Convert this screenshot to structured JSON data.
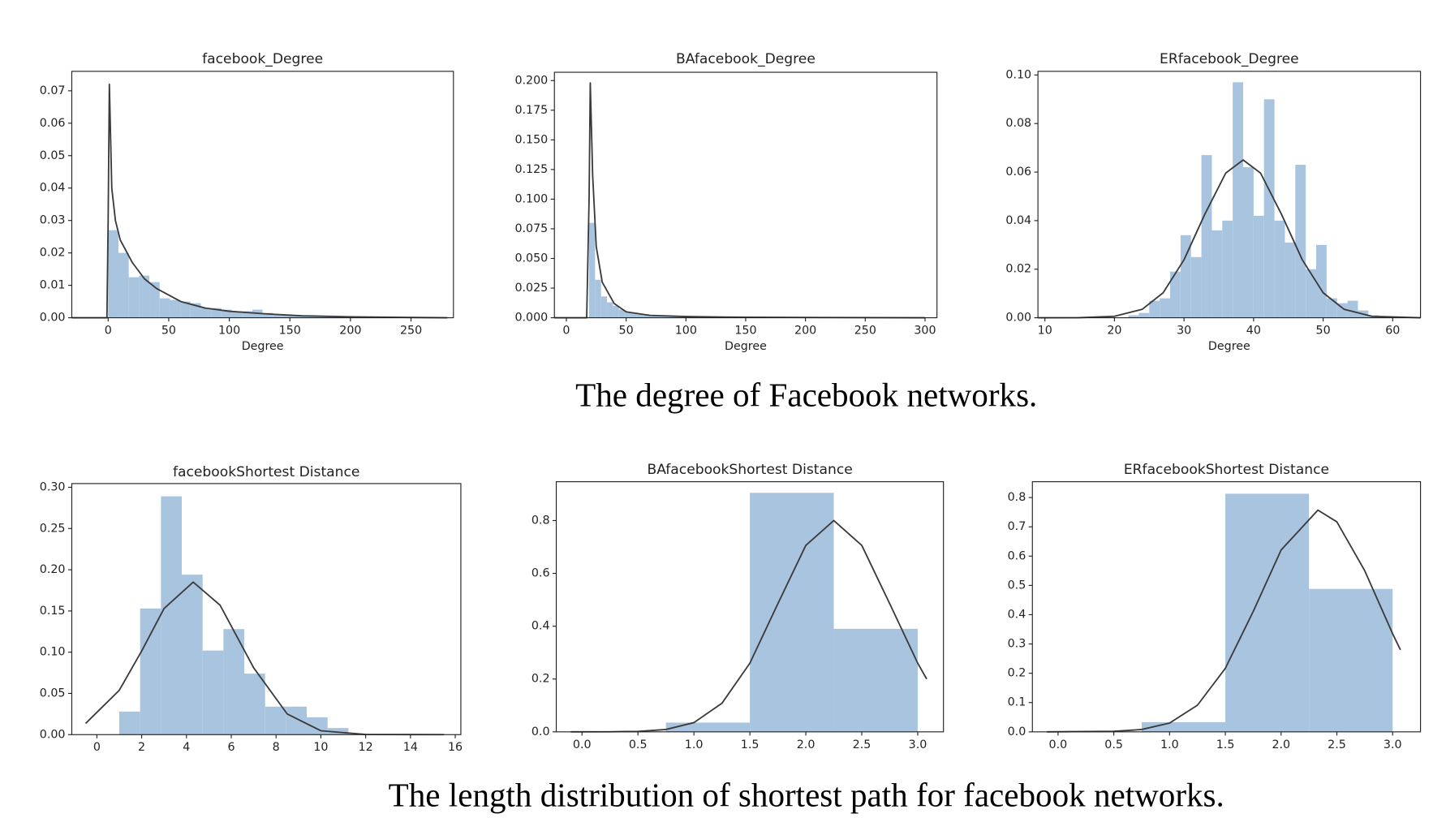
{
  "captions": [
    "The degree of Facebook networks.",
    "The length distribution of shortest path for facebook networks."
  ],
  "chart_data": [
    {
      "type": "histogram",
      "title": "facebook_Degree",
      "xlabel": "Degree",
      "color": "#a9c4de",
      "bins": [
        0,
        8.5,
        17,
        25.5,
        34,
        42.5,
        51,
        59.5,
        68,
        76.5,
        85,
        93.5,
        102,
        110.5,
        119,
        127.5,
        136,
        144.5,
        153,
        161.5,
        170,
        178.5,
        187,
        195.5,
        204,
        212.5,
        221,
        229.5,
        238,
        246.5,
        255
      ],
      "values": [
        0.027,
        0.02,
        0.0125,
        0.013,
        0.011,
        0.006,
        0.0055,
        0.005,
        0.0045,
        0.003,
        0.003,
        0.0025,
        0.002,
        0.002,
        0.0025,
        0.0015,
        0.001,
        0.001,
        0.0008,
        0.0006,
        0.0005,
        0.0004,
        0.0004,
        0.0003,
        0.0002,
        0.0002,
        0.0001,
        0.0001,
        0.0001,
        0.0001
      ],
      "kde": {
        "color": "#3a3a3a",
        "x": [
          -30,
          -1,
          0,
          1,
          3,
          6,
          10,
          20,
          30,
          40,
          60,
          80,
          100,
          130,
          160,
          200,
          250,
          280
        ],
        "values": [
          0,
          0,
          0.03,
          0.072,
          0.04,
          0.03,
          0.024,
          0.017,
          0.012,
          0.009,
          0.005,
          0.003,
          0.002,
          0.0012,
          0.0006,
          0.0003,
          0.0001,
          0
        ]
      },
      "xlim": [
        -30,
        285
      ],
      "xticks": [
        0,
        50,
        100,
        150,
        200,
        250
      ],
      "ylim": [
        0,
        0.076
      ],
      "yticks": [
        {
          "value": 0,
          "label": "0.00"
        },
        {
          "value": 0.01,
          "label": "0.01"
        },
        {
          "value": 0.02,
          "label": "0.02"
        },
        {
          "value": 0.03,
          "label": "0.03"
        },
        {
          "value": 0.04,
          "label": "0.04"
        },
        {
          "value": 0.05,
          "label": "0.05"
        },
        {
          "value": 0.06,
          "label": "0.06"
        },
        {
          "value": 0.07,
          "label": "0.07"
        }
      ]
    },
    {
      "type": "histogram",
      "title": "BAfacebook_Degree",
      "xlabel": "Degree",
      "color": "#a9c4de",
      "bins": [
        19,
        24,
        29,
        34,
        39,
        44,
        49,
        54,
        59,
        64,
        69,
        74,
        79,
        84,
        89,
        94,
        99,
        104,
        109,
        114,
        119
      ],
      "values": [
        0.08,
        0.032,
        0.018,
        0.013,
        0.01,
        0.007,
        0.005,
        0.004,
        0.003,
        0.003,
        0.0025,
        0.002,
        0.0015,
        0.0012,
        0.001,
        0.001,
        0.0008,
        0.0006,
        0.0005,
        0.0004
      ],
      "kde": {
        "color": "#3a3a3a",
        "x": [
          -10,
          17,
          19,
          20,
          22,
          25,
          30,
          40,
          50,
          70,
          100,
          150,
          300
        ],
        "values": [
          0,
          0,
          0.1,
          0.198,
          0.12,
          0.06,
          0.03,
          0.012,
          0.005,
          0.002,
          0.001,
          0.0004,
          0
        ]
      },
      "xlim": [
        -10,
        310
      ],
      "xticks": [
        0,
        50,
        100,
        150,
        200,
        250,
        300
      ],
      "ylim": [
        0,
        0.207
      ],
      "yticks": [
        {
          "value": 0,
          "label": "0.000"
        },
        {
          "value": 0.025,
          "label": "0.025"
        },
        {
          "value": 0.05,
          "label": "0.050"
        },
        {
          "value": 0.075,
          "label": "0.075"
        },
        {
          "value": 0.1,
          "label": "0.100"
        },
        {
          "value": 0.125,
          "label": "0.125"
        },
        {
          "value": 0.15,
          "label": "0.150"
        },
        {
          "value": 0.175,
          "label": "0.175"
        },
        {
          "value": 0.2,
          "label": "0.200"
        }
      ]
    },
    {
      "type": "histogram",
      "title": "ERfacebook_Degree",
      "xlabel": "Degree",
      "color": "#a9c4de",
      "bins": [
        22,
        23.5,
        25,
        26.5,
        28,
        29.5,
        31,
        32.5,
        34,
        35.5,
        37,
        38.5,
        40,
        41.5,
        43,
        44.5,
        46,
        47.5,
        49,
        50.5,
        52,
        53.5,
        55,
        56.5,
        58
      ],
      "values": [
        0.001,
        0.002,
        0.007,
        0.008,
        0.019,
        0.034,
        0.025,
        0.067,
        0.036,
        0.04,
        0.097,
        0.062,
        0.042,
        0.09,
        0.04,
        0.031,
        0.063,
        0.02,
        0.03,
        0.008,
        0.006,
        0.007,
        0.003,
        0.001
      ],
      "kde": {
        "color": "#3a3a3a",
        "x": [
          9,
          15,
          20,
          24,
          27,
          30,
          33,
          36,
          38.5,
          41,
          44,
          47,
          50,
          53,
          57,
          64
        ],
        "values": [
          0,
          3e-05,
          0.0006,
          0.0035,
          0.0103,
          0.0239,
          0.0427,
          0.0596,
          0.065,
          0.0596,
          0.0427,
          0.0239,
          0.0103,
          0.0035,
          0.0006,
          0
        ]
      },
      "xlim": [
        9,
        64
      ],
      "xticks": [
        10,
        20,
        30,
        40,
        50,
        60
      ],
      "ylim": [
        0,
        0.1015
      ],
      "yticks": [
        {
          "value": 0,
          "label": "0.00"
        },
        {
          "value": 0.02,
          "label": "0.02"
        },
        {
          "value": 0.04,
          "label": "0.04"
        },
        {
          "value": 0.06,
          "label": "0.06"
        },
        {
          "value": 0.08,
          "label": "0.08"
        },
        {
          "value": 0.1,
          "label": "0.10"
        }
      ]
    },
    {
      "type": "histogram",
      "title": "facebookShortest Distance",
      "color": "#a9c4de",
      "bins": [
        1,
        1.93,
        2.86,
        3.79,
        4.72,
        5.65,
        6.58,
        7.51,
        8.44,
        9.37,
        10.3,
        11.23
      ],
      "values": [
        0.028,
        0.153,
        0.289,
        0.194,
        0.102,
        0.128,
        0.074,
        0.034,
        0.034,
        0.021,
        0.008
      ],
      "kde": {
        "color": "#3a3a3a",
        "x": [
          -0.5,
          1,
          2,
          3,
          4.3,
          5.5,
          7,
          8.5,
          10,
          12,
          15.5
        ],
        "values": [
          0.0136,
          0.0538,
          0.1015,
          0.153,
          0.185,
          0.157,
          0.081,
          0.025,
          0.0047,
          0.0002,
          0
        ]
      },
      "xlim": [
        -1.12,
        16.25
      ],
      "xticks": [
        0,
        2,
        4,
        6,
        8,
        10,
        12,
        14,
        16
      ],
      "ylim": [
        0,
        0.3045
      ],
      "yticks": [
        {
          "value": 0,
          "label": "0.00"
        },
        {
          "value": 0.05,
          "label": "0.05"
        },
        {
          "value": 0.1,
          "label": "0.10"
        },
        {
          "value": 0.15,
          "label": "0.15"
        },
        {
          "value": 0.2,
          "label": "0.20"
        },
        {
          "value": 0.25,
          "label": "0.25"
        },
        {
          "value": 0.3,
          "label": "0.30"
        }
      ]
    },
    {
      "type": "histogram",
      "title": "BAfacebookShortest Distance",
      "color": "#a9c4de",
      "bins": [
        0.75,
        1.5,
        2.25,
        3.0
      ],
      "values": [
        0.035,
        0.905,
        0.39
      ],
      "kde": {
        "color": "#3a3a3a",
        "x": [
          -0.1,
          0.25,
          0.5,
          0.75,
          1.0,
          1.25,
          1.5,
          1.75,
          2.0,
          2.25,
          2.5,
          2.75,
          3.0,
          3.08
        ],
        "values": [
          0,
          0.0003,
          0.0017,
          0.0089,
          0.035,
          0.108,
          0.26,
          0.485,
          0.706,
          0.8,
          0.706,
          0.485,
          0.26,
          0.2
        ]
      },
      "xlim": [
        -0.23,
        3.23
      ],
      "xticks": [
        {
          "value": 0,
          "label": "0.0"
        },
        {
          "value": 0.5,
          "label": "0.5"
        },
        {
          "value": 1,
          "label": "1.0"
        },
        {
          "value": 1.5,
          "label": "1.5"
        },
        {
          "value": 2,
          "label": "2.0"
        },
        {
          "value": 2.5,
          "label": "2.5"
        },
        {
          "value": 3,
          "label": "3.0"
        }
      ],
      "ylim": [
        0,
        0.947
      ],
      "yticks": [
        {
          "value": 0,
          "label": "0.0"
        },
        {
          "value": 0.2,
          "label": "0.2"
        },
        {
          "value": 0.4,
          "label": "0.4"
        },
        {
          "value": 0.6,
          "label": "0.6"
        },
        {
          "value": 0.8,
          "label": "0.8"
        }
      ]
    },
    {
      "type": "histogram",
      "title": "ERfacebookShortest Distance",
      "color": "#a9c4de",
      "bins": [
        0.75,
        1.5,
        2.25,
        3.0
      ],
      "values": [
        0.033,
        0.813,
        0.488
      ],
      "kde": {
        "color": "#3a3a3a",
        "x": [
          -0.1,
          0.5,
          0.75,
          1.0,
          1.25,
          1.5,
          1.75,
          2.0,
          2.33,
          2.5,
          2.75,
          3.0,
          3.07
        ],
        "values": [
          0,
          0.0017,
          0.008,
          0.03,
          0.091,
          0.217,
          0.411,
          0.621,
          0.757,
          0.717,
          0.55,
          0.335,
          0.28
        ]
      },
      "xlim": [
        -0.23,
        3.25
      ],
      "xticks": [
        {
          "value": 0,
          "label": "0.0"
        },
        {
          "value": 0.5,
          "label": "0.5"
        },
        {
          "value": 1,
          "label": "1.0"
        },
        {
          "value": 1.5,
          "label": "1.5"
        },
        {
          "value": 2,
          "label": "2.0"
        },
        {
          "value": 2.5,
          "label": "2.5"
        },
        {
          "value": 3,
          "label": "3.0"
        }
      ],
      "ylim": [
        0,
        0.854
      ],
      "yticks": [
        {
          "value": 0,
          "label": "0.0"
        },
        {
          "value": 0.1,
          "label": "0.1"
        },
        {
          "value": 0.2,
          "label": "0.2"
        },
        {
          "value": 0.3,
          "label": "0.3"
        },
        {
          "value": 0.4,
          "label": "0.4"
        },
        {
          "value": 0.5,
          "label": "0.5"
        },
        {
          "value": 0.6,
          "label": "0.6"
        },
        {
          "value": 0.7,
          "label": "0.7"
        },
        {
          "value": 0.8,
          "label": "0.8"
        }
      ]
    }
  ]
}
